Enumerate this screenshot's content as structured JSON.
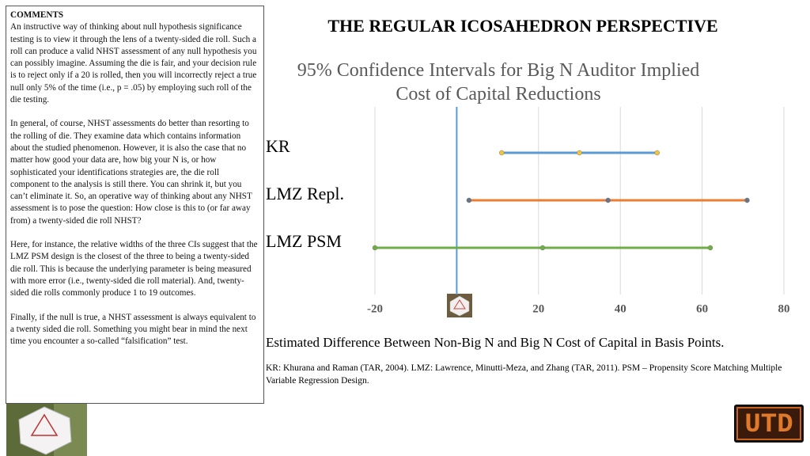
{
  "comments": {
    "heading": "COMMENTS",
    "paragraphs": [
      "An instructive way of thinking about null hypothesis significance testing is to view it through the lens of a twenty-sided die roll. Such a roll can produce a valid NHST assessment of any null hypothesis you can possibly imagine. Assuming the die is fair, and your decision rule is to reject only if a 20 is rolled, then you will incorrectly reject a true null only 5% of the time (i.e., p = .05) by employing such roll of the die testing.",
      "In general, of course, NHST assessments do better than resorting to the rolling of die. They examine data which contains information about the studied phenomenon. However, it is also the case that no matter how good your data are, how big your N is, or how sophisticated your identifications strategies are, the die roll component to the analysis is still there. You can shrink it, but you can’t eliminate it. So, an operative way of thinking about any NHST assessment is to pose the question: How close is this to (or far away from) a twenty-sided die roll NHST?",
      "Here, for instance, the relative widths of the three CIs suggest that the LMZ PSM design is the closest of the three to being a twenty-sided die roll. This is because the underlying parameter is being measured with more error (i.e., twenty-sided die roll material).  And, twenty-sided die rolls commonly produce 1 to 19 outcomes.",
      "Finally, if the null is true, a NHST assessment is always equivalent to a twenty sided die roll. Something you might bear in mind the next time you encounter a so-called “falsification” test."
    ]
  },
  "header": {
    "title": "THE REGULAR ICOSAHEDRON PERSPECTIVE"
  },
  "chart_data": {
    "type": "interval",
    "title": "95% Confidence Intervals for Big N Auditor Implied Cost of Capital Reductions",
    "x_label": "Estimated Difference Between Non-Big N and Big N Cost of Capital in Basis Points.",
    "categories": [
      "KR",
      "LMZ Repl.",
      "LMZ PSM"
    ],
    "low": [
      11,
      3,
      -20
    ],
    "estimate": [
      30,
      37,
      21
    ],
    "high": [
      49,
      71,
      62
    ],
    "colors": [
      "#5b9bd5",
      "#ed7d31",
      "#70ad47"
    ],
    "point_colors": [
      "#f2c53d",
      "#6b7384",
      "#70ad47"
    ],
    "xlim": [
      -20,
      80
    ],
    "xticks": [
      -20,
      20,
      40,
      60,
      80
    ],
    "grid": true
  },
  "footnote": "KR: Khurana and Raman (TAR, 2004).  LMZ: Lawrence, Minutti-Meza, and Zhang (TAR, 2011). PSM – Propensity Score Matching Multiple Variable Regression Design.",
  "logo": "UTD"
}
